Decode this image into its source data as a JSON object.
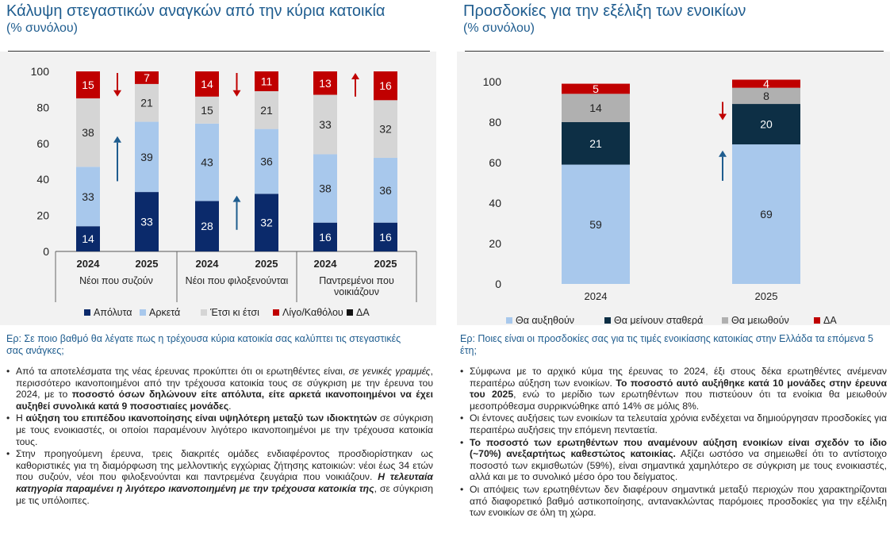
{
  "left": {
    "title": "Κάλυψη στεγαστικών αναγκών από την κύρια κατοικία",
    "subtitle": "(% συνόλου)",
    "question": "Ερ: Σε ποιο βαθμό θα λέγατε πως η τρέχουσα κύρια κατοικία σας καλύπτει τις στεγαστικές σας ανάγκες;",
    "bullets": [
      [
        {
          "t": "Από τα αποτελέσματα της νέας έρευνας προκύπτει ότι οι ερωτηθέντες είναι, "
        },
        {
          "t": "σε γενικές γραμμές",
          "s": "i"
        },
        {
          "t": ", περισσότερο ικανοποιημένοι από την τρέχουσα κατοικία τους σε σύγκριση με την έρευνα του 2024, με το "
        },
        {
          "t": "ποσοστό όσων δηλώνουν είτε απόλυτα, είτε αρκετά ικανοποιημένοι να έχει αυξηθεί συνολικά κατά 9 ποσοστιαίες μονάδες",
          "s": "b"
        },
        {
          "t": "."
        }
      ],
      [
        {
          "t": "Η "
        },
        {
          "t": "αύξηση του επιπέδου ικανοποίησης είναι υψηλότερη μεταξύ των ιδιοκτητών",
          "s": "b"
        },
        {
          "t": " σε σύγκριση με τους ενοικιαστές, οι οποίοι παραμένουν λιγότερο ικανοποιημένοι με την τρέχουσα κατοικία τους."
        }
      ],
      [
        {
          "t": "Στην προηγούμενη έρευνα, τρεις διακριτές ομάδες ενδιαφέροντος προσδιορίστηκαν ως καθοριστικές για τη διαμόρφωση της μελλοντικής εγχώριας ζήτησης κατοικιών: νέοι έως 34 ετών που συζούν, νέοι που φιλοξενούνται και παντρεμένα ζευγάρια που νοικιάζουν. "
        },
        {
          "t": "Η τελευταία κατηγορία παραμένει η λιγότερο ικανοποιημένη με την τρέχουσα κατοικία της",
          "s": "bi"
        },
        {
          "t": ", σε σύγκριση με τις υπόλοιπες."
        }
      ]
    ]
  },
  "right": {
    "title": "Προσδοκίες για την εξέλιξη των ενοικίων",
    "subtitle": "(% συνόλου)",
    "question": "Ερ: Ποιες είναι οι προσδοκίες σας για τις τιμές ενοικίασης κατοικίας στην Ελλάδα τα επόμενα 5 έτη;",
    "bullets": [
      [
        {
          "t": "Σύμφωνα με το αρχικό κύμα της έρευνας το 2024, έξι στους δέκα ερωτηθέντες ανέμεναν περαιτέρω αύξηση των ενοικίων. "
        },
        {
          "t": "Το ποσοστό αυτό αυξήθηκε κατά 10 μονάδες στην έρευνα του 2025",
          "s": "b"
        },
        {
          "t": ", ενώ το μερίδιο των ερωτηθέντων που πιστεύουν ότι τα ενοίκια θα μειωθούν μεσοπρόθεσμα συρρικνώθηκε από 14% σε μόλις 8%."
        }
      ],
      [
        {
          "t": "Οι έντονες αυξήσεις των ενοικίων τα τελευταία χρόνια ενδέχεται να δημιούργησαν προσδοκίες για περαιτέρω αυξήσεις την επόμενη πενταετία."
        }
      ],
      [
        {
          "t": "Το ποσοστό των ερωτηθέντων που αναμένουν αύξηση ενοικίων είναι σχεδόν το ίδιο (~70%) ανεξαρτήτως καθεστώτος κατοικίας.",
          "s": "b"
        },
        {
          "t": " Αξίζει ωστόσο να σημειωθεί ότι το αντίστοιχο ποσοστό των εκμισθωτών (59%), είναι σημαντικά χαμηλότερο σε σύγκριση με τους ενοικιαστές, αλλά και με το συνολικό μέσο όρο του δείγματος."
        }
      ],
      [
        {
          "t": "Οι απόψεις των ερωτηθέντων δεν διαφέρουν σημαντικά μεταξύ περιοχών που χαρακτηρίζονται από διαφορετικό βαθμό αστικοποίησης,  αντανακλώντας παρόμοιες προσδοκίες για την εξέλιξη των ενοικίων σε όλη τη χώρα."
        }
      ]
    ]
  },
  "chart_data": [
    {
      "type": "bar",
      "stacked": true,
      "title": "Κάλυψη στεγαστικών αναγκών από την κύρια κατοικία",
      "subtitle": "(% συνόλου)",
      "categories": [
        "2024",
        "2025",
        "2024",
        "2025",
        "2024",
        "2025"
      ],
      "groups": [
        {
          "label": "Νέοι που συζούν",
          "indices": [
            0,
            1
          ]
        },
        {
          "label": "Νέοι που φιλοξενούνται",
          "indices": [
            2,
            3
          ]
        },
        {
          "label": "Παντρεμένοι που νοικιάζουν",
          "indices": [
            4,
            5
          ]
        }
      ],
      "series": [
        {
          "name": "Απόλυτα",
          "color": "#0b2a6b",
          "values": [
            14,
            33,
            28,
            32,
            16,
            16
          ]
        },
        {
          "name": "Αρκετά",
          "color": "#a8c8ec",
          "values": [
            33,
            39,
            43,
            36,
            38,
            36
          ]
        },
        {
          "name": "Έτσι κι έτσι",
          "color": "#d5d5d5",
          "values": [
            38,
            21,
            15,
            21,
            33,
            32
          ]
        },
        {
          "name": "Λίγο/Καθόλου",
          "color": "#c00000",
          "values": [
            15,
            7,
            14,
            11,
            13,
            16
          ]
        },
        {
          "name": "ΔΑ",
          "color": "#111111",
          "values": [
            0,
            0,
            0,
            0,
            0,
            0
          ]
        }
      ],
      "annotations": [
        {
          "type": "arrow",
          "direction": "down",
          "series": "Λίγο/Καθόλου",
          "between": [
            0,
            1
          ],
          "color": "#c00000"
        },
        {
          "type": "arrow",
          "direction": "up",
          "series": "Αρκετά",
          "between": [
            0,
            1
          ],
          "color": "#1f5d8f"
        },
        {
          "type": "arrow",
          "direction": "down",
          "series": "Λίγο/Καθόλου",
          "between": [
            2,
            3
          ],
          "color": "#c00000"
        },
        {
          "type": "arrow",
          "direction": "up",
          "series": "Απόλυτα",
          "between": [
            2,
            3
          ],
          "color": "#1f5d8f"
        },
        {
          "type": "arrow",
          "direction": "up",
          "series": "Λίγο/Καθόλου",
          "between": [
            4,
            5
          ],
          "color": "#c00000"
        }
      ],
      "ylim": [
        0,
        100
      ],
      "yticks": [
        0,
        20,
        40,
        60,
        80,
        100
      ],
      "grid": false,
      "legend": "bottom"
    },
    {
      "type": "bar",
      "stacked": true,
      "title": "Προσδοκίες για την εξέλιξη των ενοικίων",
      "subtitle": "(% συνόλου)",
      "categories": [
        "2024",
        "2025"
      ],
      "series": [
        {
          "name": "Θα αυξηθούν",
          "color": "#a8c8ec",
          "values": [
            59,
            69
          ]
        },
        {
          "name": "Θα μείνουν  σταθερά",
          "color": "#0d2f45",
          "values": [
            21,
            20
          ]
        },
        {
          "name": "Θα μειωθούν",
          "color": "#b0b0b0",
          "values": [
            14,
            8
          ]
        },
        {
          "name": "ΔΑ",
          "color": "#c00000",
          "values": [
            5,
            4
          ]
        }
      ],
      "annotations": [
        {
          "type": "arrow",
          "direction": "down",
          "series": "Θα μειωθούν",
          "at": 1,
          "color": "#c00000"
        },
        {
          "type": "arrow",
          "direction": "up",
          "series": "Θα αυξηθούν",
          "at": 1,
          "color": "#1f5d8f"
        }
      ],
      "ylim": [
        0,
        100
      ],
      "yticks": [
        0,
        20,
        40,
        60,
        80,
        100
      ],
      "grid": false,
      "legend": "bottom"
    }
  ]
}
